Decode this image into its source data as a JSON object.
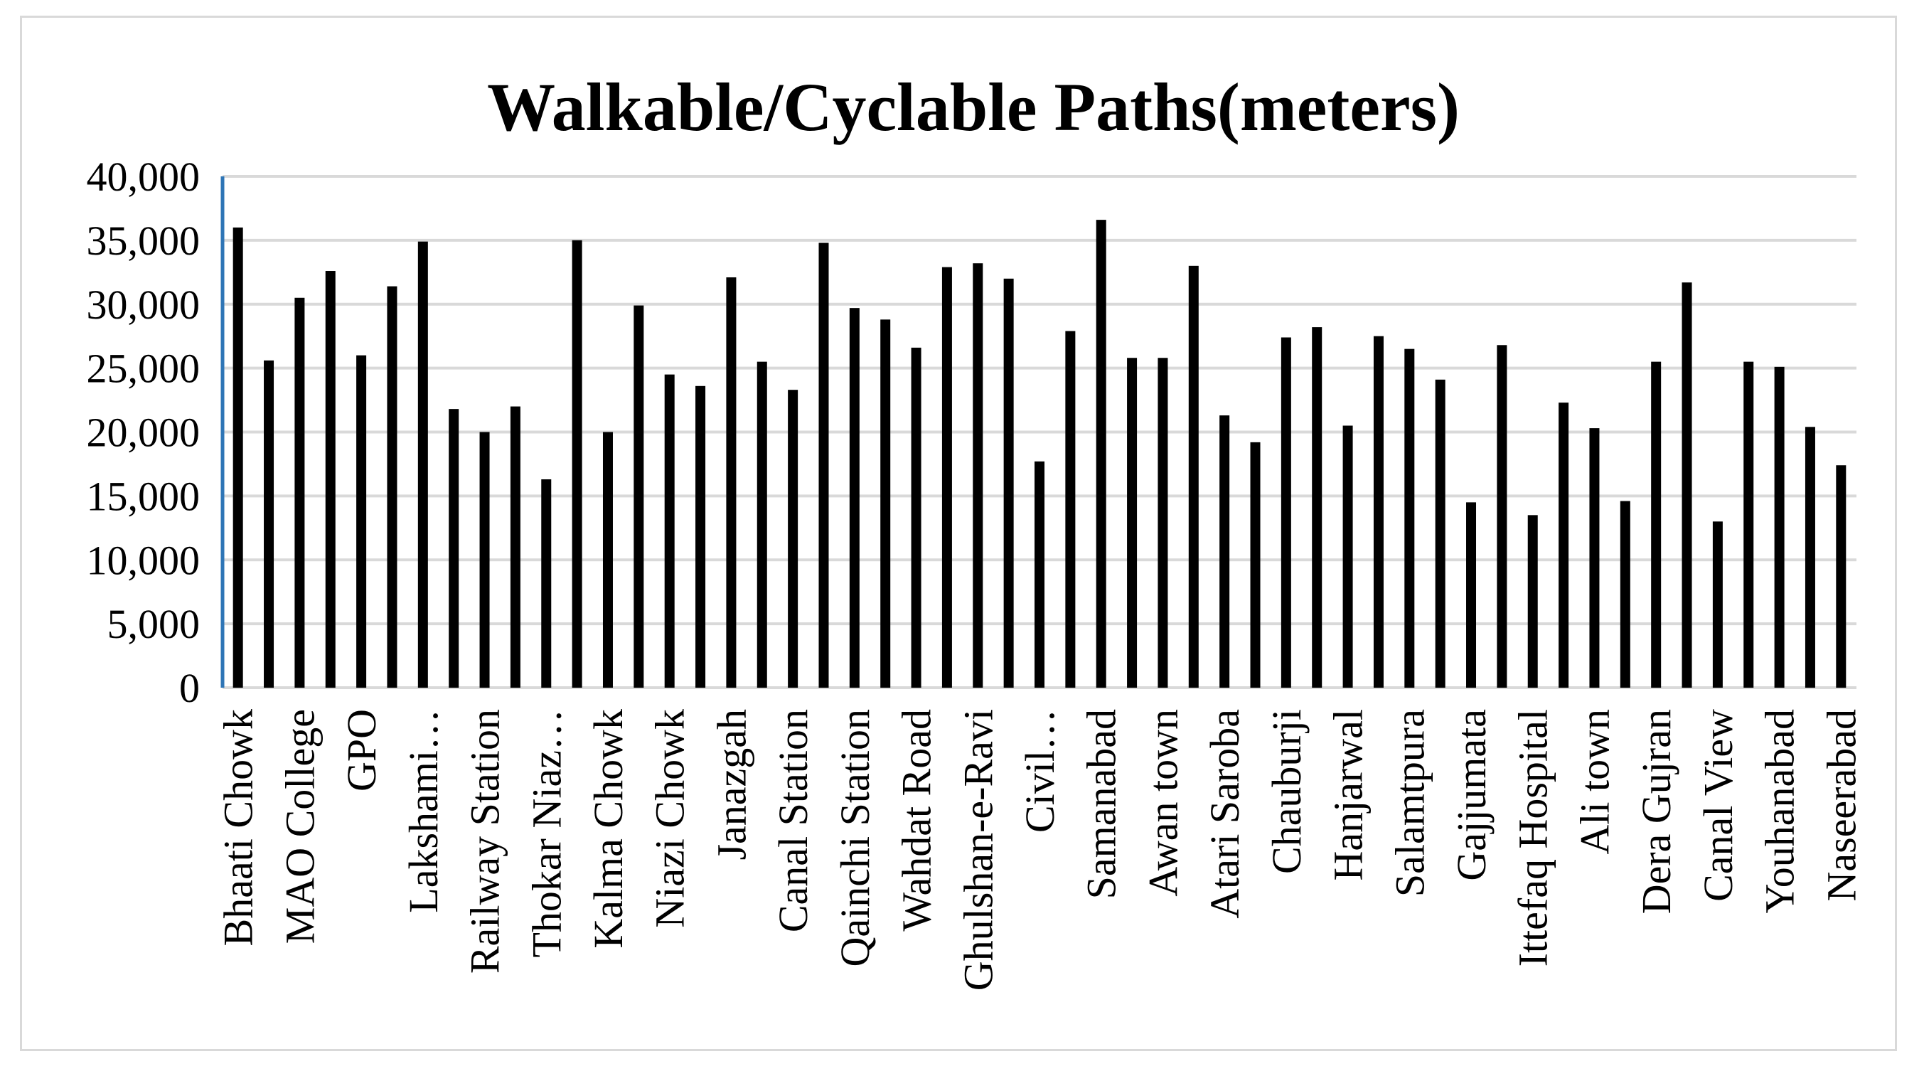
{
  "chart_data": {
    "type": "bar",
    "title": "Walkable/Cyclable Paths(meters)",
    "xlabel": "",
    "ylabel": "",
    "ylim": [
      0,
      40000
    ],
    "yticks": [
      "0",
      "5,000",
      "10,000",
      "15,000",
      "20,000",
      "25,000",
      "30,000",
      "35,000",
      "40,000"
    ],
    "grid": true,
    "legend": "none",
    "categories": [
      "Bhaati Chowk",
      "",
      "MAO College",
      "",
      "GPO",
      "",
      "Lakshami…",
      "",
      "Railway Station",
      "",
      "Thokar Niaz…",
      "",
      "Kalma Chowk",
      "",
      "Niazi Chowk",
      "",
      "Janazgah",
      "",
      "Canal Station",
      "",
      "Qainchi Station",
      "",
      "Wahdat Road",
      "",
      "Ghulshan-e-Ravi",
      "",
      "Civil…",
      "",
      "Samanabad",
      "",
      "Awan town",
      "",
      "Atari Saroba",
      "",
      "Chauburji",
      "",
      "Hanjarwal",
      "",
      "Salamtpura",
      "",
      "Gajjumata",
      "",
      "Ittefaq Hospital",
      "",
      "Ali town",
      "",
      "Dera Gujran",
      "",
      "Canal View",
      "",
      "Youhanabad",
      "",
      "Naseerabad"
    ],
    "values": [
      36000,
      25600,
      30500,
      32600,
      26000,
      31400,
      34900,
      21800,
      20000,
      22000,
      16300,
      35000,
      20000,
      29900,
      24500,
      23600,
      32100,
      25500,
      23300,
      34800,
      29700,
      28800,
      26600,
      32900,
      33200,
      32000,
      17700,
      27900,
      36600,
      25800,
      25800,
      33000,
      21300,
      19200,
      27400,
      28200,
      20500,
      27500,
      26500,
      24100,
      14500,
      26800,
      13500,
      22300,
      20300,
      14600,
      25500,
      31700,
      13000,
      25500,
      25100,
      20400,
      17400
    ],
    "colors": {
      "bar": "#000000",
      "grid": "#d9d9d9",
      "axis": "#2e75b6"
    }
  }
}
